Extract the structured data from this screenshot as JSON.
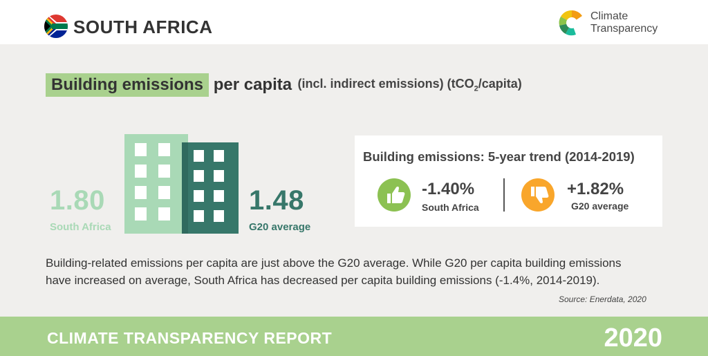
{
  "header": {
    "country": "SOUTH AFRICA",
    "logo_line1": "Climate",
    "logo_line2": "Transparency"
  },
  "title": {
    "highlight": "Building emissions",
    "rest": "per capita",
    "unit_pre": "(incl. indirect emissions) (tCO",
    "unit_sub": "2",
    "unit_post": "/capita)"
  },
  "comparison": {
    "south_africa": {
      "value": "1.80",
      "label": "South Africa",
      "color": "#a9d9b6"
    },
    "g20": {
      "value": "1.48",
      "label": "G20 average",
      "color": "#37776a"
    }
  },
  "trend": {
    "title": "Building emissions: 5-year trend (2014-2019)",
    "south_africa": {
      "value": "-1.40%",
      "label": "South Africa",
      "icon": "thumbs-up-icon",
      "color": "#8cc152"
    },
    "g20": {
      "value": "+1.82%",
      "label": "G20 average",
      "icon": "thumbs-down-icon",
      "color": "#f9a62b"
    }
  },
  "description": "Building-related emissions per capita are just above the G20 average. While G20 per capita building emissions have increased on average, South Africa has decreased per capita building emissions (-1.4%, 2014-2019).",
  "source": "Source: Enerdata, 2020",
  "footer": {
    "report": "CLIMATE TRANSPARENCY REPORT",
    "year": "2020"
  }
}
